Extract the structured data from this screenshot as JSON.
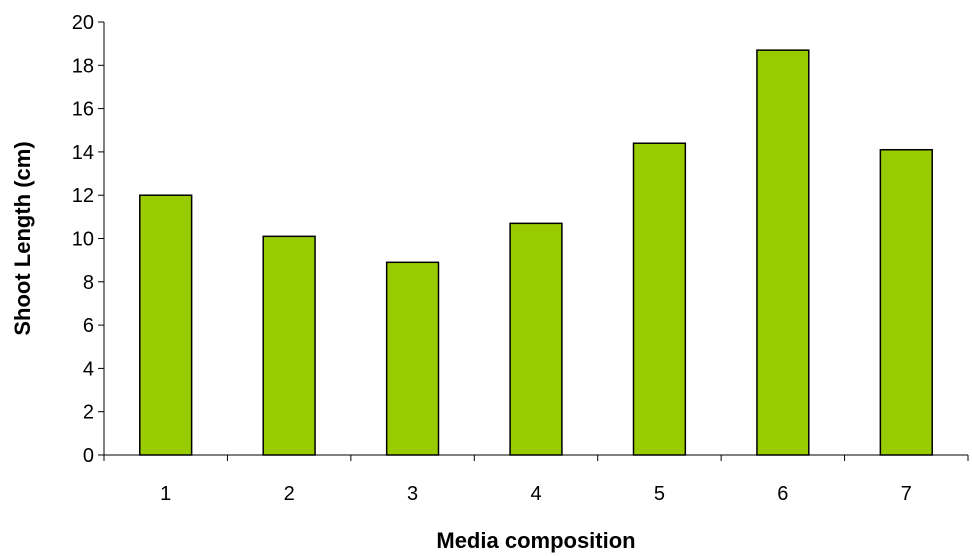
{
  "chart_data": {
    "type": "bar",
    "categories": [
      "1",
      "2",
      "3",
      "4",
      "5",
      "6",
      "7"
    ],
    "series": [
      {
        "values": [
          12.0,
          10.1,
          8.9,
          10.7,
          14.4,
          18.7,
          14.1
        ]
      }
    ],
    "xlabel": "Media composition",
    "ylabel": "Shoot Length (cm)",
    "ylim": [
      0,
      20
    ],
    "yticks": [
      0,
      2,
      4,
      6,
      8,
      10,
      12,
      14,
      16,
      18,
      20
    ],
    "grid": false,
    "legend": "none",
    "bar_color": "#99cc00",
    "bar_edge_color": "#000000"
  }
}
